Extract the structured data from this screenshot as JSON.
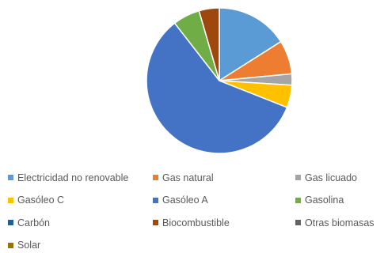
{
  "chart_data": {
    "type": "pie",
    "title": "",
    "legend_position": "bottom",
    "slices": [
      {
        "label": "Electricidad no renovable",
        "value": 16.0,
        "color": "#5b9bd5"
      },
      {
        "label": "Gas natural",
        "value": 7.5,
        "color": "#ed7d31"
      },
      {
        "label": "Gas licuado",
        "value": 2.5,
        "color": "#a5a5a5"
      },
      {
        "label": "Gasóleo C",
        "value": 5.0,
        "color": "#ffc000"
      },
      {
        "label": "Gasóleo A",
        "value": 58.5,
        "color": "#4472c4"
      },
      {
        "label": "Gasolina",
        "value": 6.0,
        "color": "#70ad47"
      },
      {
        "label": "Carbón",
        "value": 0.0,
        "color": "#255e91"
      },
      {
        "label": "Biocombustible",
        "value": 4.5,
        "color": "#9e480e"
      },
      {
        "label": "Otras biomasas",
        "value": 0.0,
        "color": "#636363"
      },
      {
        "label": "Solar",
        "value": 0.0,
        "color": "#997300"
      }
    ]
  }
}
